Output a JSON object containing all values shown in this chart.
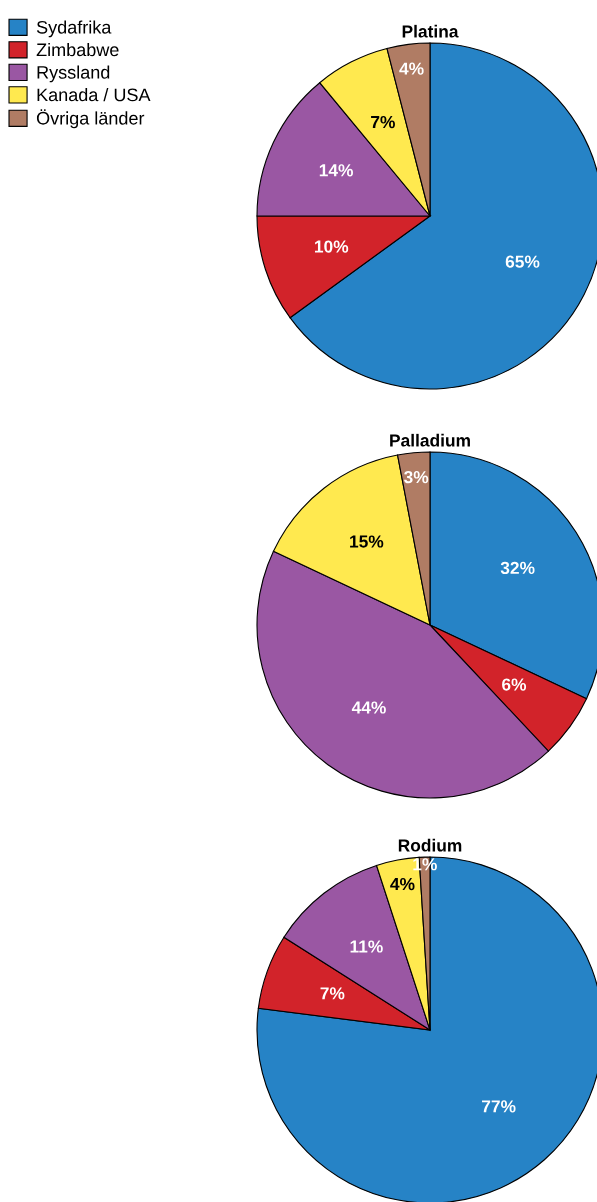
{
  "chart_data": [
    {
      "type": "pie",
      "title": "Platina",
      "categories": [
        "Sydafrika",
        "Zimbabwe",
        "Ryssland",
        "Kanada / USA",
        "Övriga länder"
      ],
      "values": [
        65,
        10,
        14,
        7,
        4
      ],
      "colors": [
        "#2683c6",
        "#d2232a",
        "#9a57a3",
        "#ffe94f",
        "#b07c64"
      ],
      "value_labels": [
        "65%",
        "10%",
        "14%",
        "7%",
        "4%"
      ],
      "legend": "top left"
    },
    {
      "type": "pie",
      "title": "Palladium",
      "categories": [
        null,
        null,
        null,
        null,
        null
      ],
      "values": [
        32,
        6,
        44,
        15,
        3
      ],
      "colors": [
        "#2683c6",
        "#d2232a",
        "#9a57a3",
        "#ffe94f",
        "#b07c64"
      ],
      "value_labels": [
        "32%",
        "6%",
        "44%",
        "15%",
        "3%"
      ]
    },
    {
      "type": "pie",
      "title": "Rodium",
      "categories": [
        null,
        null,
        null,
        null,
        null
      ],
      "values": [
        77,
        7,
        11,
        4,
        1
      ],
      "colors": [
        "#2683c6",
        "#d2232a",
        "#9a57a3",
        "#ffe94f",
        "#b07c64"
      ],
      "value_labels": [
        "77%",
        "7%",
        "11%",
        "4%",
        "1%"
      ]
    }
  ]
}
